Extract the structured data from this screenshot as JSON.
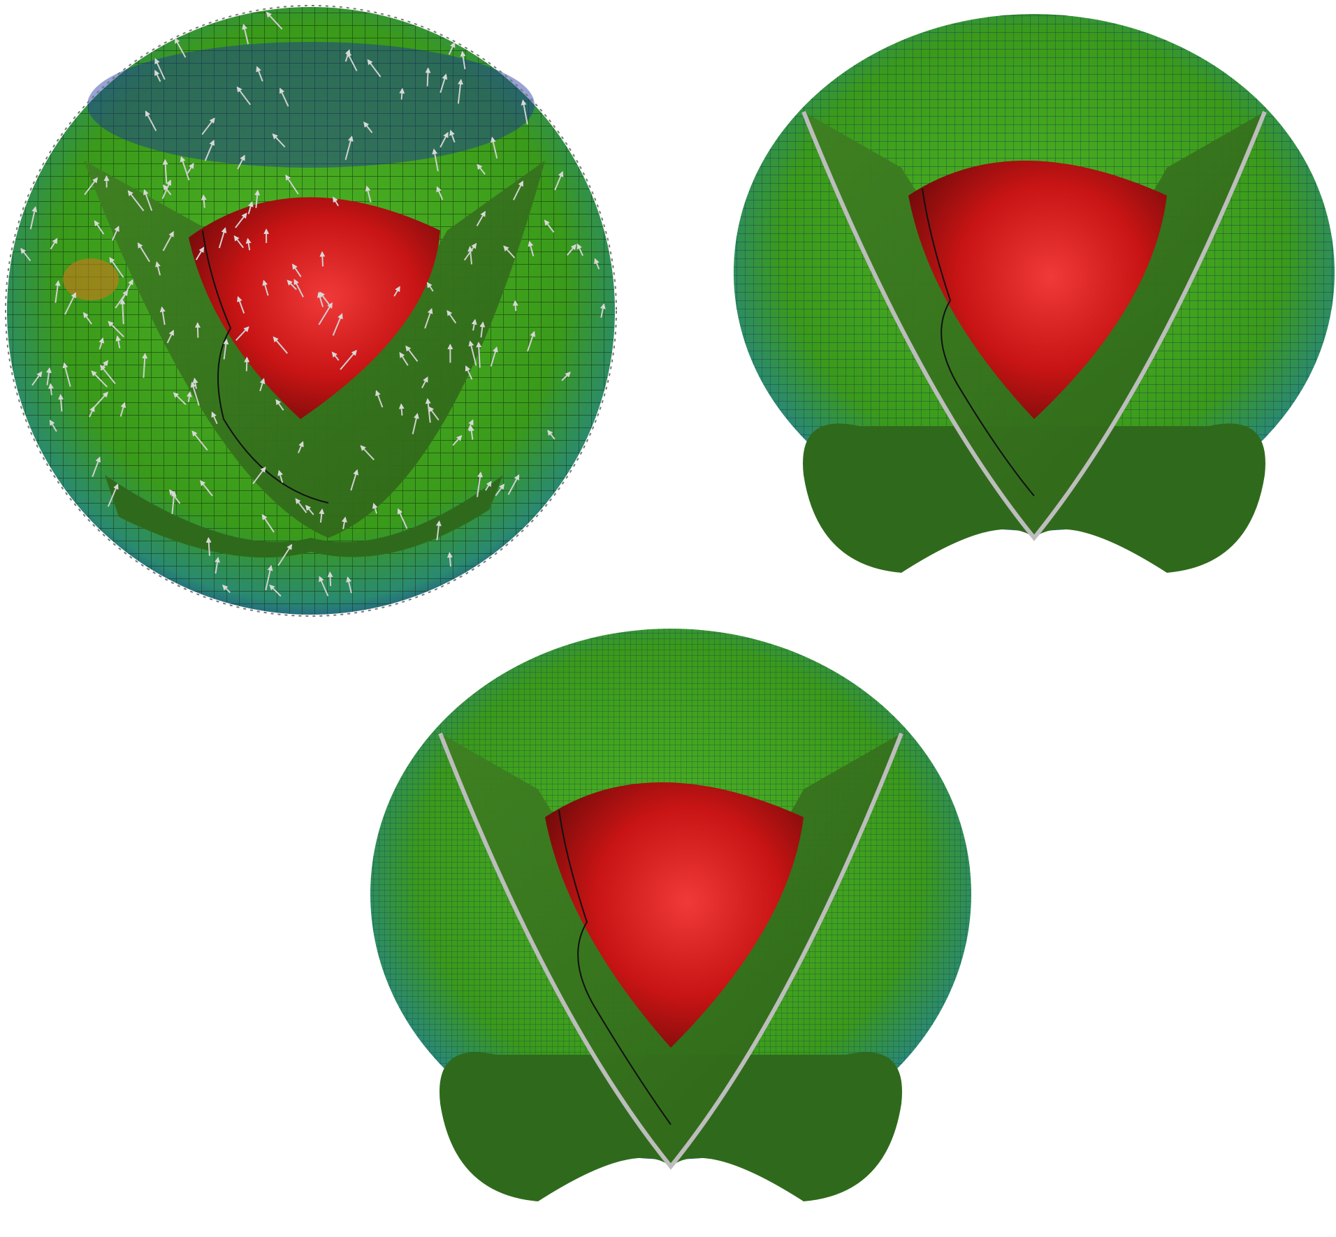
{
  "figure": {
    "panels": [
      {
        "name": "panel-coarse-mesh-with-velocity-arrows",
        "shows_velocity_arrows": true,
        "mesh_density": "coarse"
      },
      {
        "name": "panel-medium-mesh",
        "shows_velocity_arrows": false,
        "mesh_density": "medium"
      },
      {
        "name": "panel-fine-mesh",
        "shows_velocity_arrows": false,
        "mesh_density": "fine"
      }
    ],
    "colors": {
      "core": "#d01818",
      "core_highlight": "#f04040",
      "mantle_green": "#3a9a1a",
      "mantle_dark": "#2a6a18",
      "cut_face": "#3d7a22",
      "cold_blue": "#1a30a0",
      "warm_orange": "#d0781a",
      "coastline": "#111111",
      "arrow": "#c8c8c8",
      "outline_gray": "#9a9a9a"
    }
  }
}
